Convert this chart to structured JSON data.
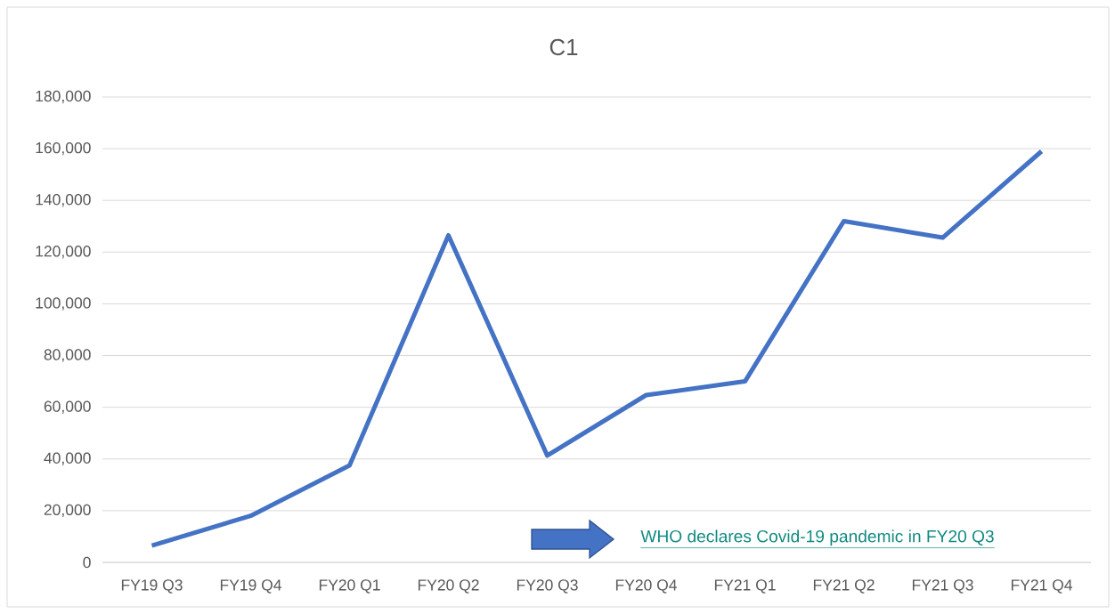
{
  "chart_data": {
    "type": "line",
    "title": "C1",
    "categories": [
      "FY19 Q3",
      "FY19 Q4",
      "FY20 Q1",
      "FY20 Q2",
      "FY20 Q3",
      "FY20 Q4",
      "FY21 Q1",
      "FY21 Q2",
      "FY21 Q3",
      "FY21 Q4"
    ],
    "series": [
      {
        "color": "#4472c4",
        "values": [
          6500,
          18000,
          37500,
          126500,
          41300,
          64700,
          70000,
          132000,
          125600,
          159000
        ]
      }
    ],
    "ylim": [
      0,
      180000
    ],
    "yticks": [
      {
        "value": 0,
        "label": "0"
      },
      {
        "value": 20000,
        "label": "20,000"
      },
      {
        "value": 40000,
        "label": "40,000"
      },
      {
        "value": 60000,
        "label": "60,000"
      },
      {
        "value": 80000,
        "label": "80,000"
      },
      {
        "value": 100000,
        "label": "100,000"
      },
      {
        "value": 120000,
        "label": "120,000"
      },
      {
        "value": 140000,
        "label": "140,000"
      },
      {
        "value": 160000,
        "label": "160,000"
      },
      {
        "value": 180000,
        "label": "180,000"
      }
    ],
    "grid": "y",
    "marker": "none",
    "line_style": "solid",
    "annotations": [
      "WHO declares Covid-19 pandemic in FY20 Q3"
    ]
  }
}
